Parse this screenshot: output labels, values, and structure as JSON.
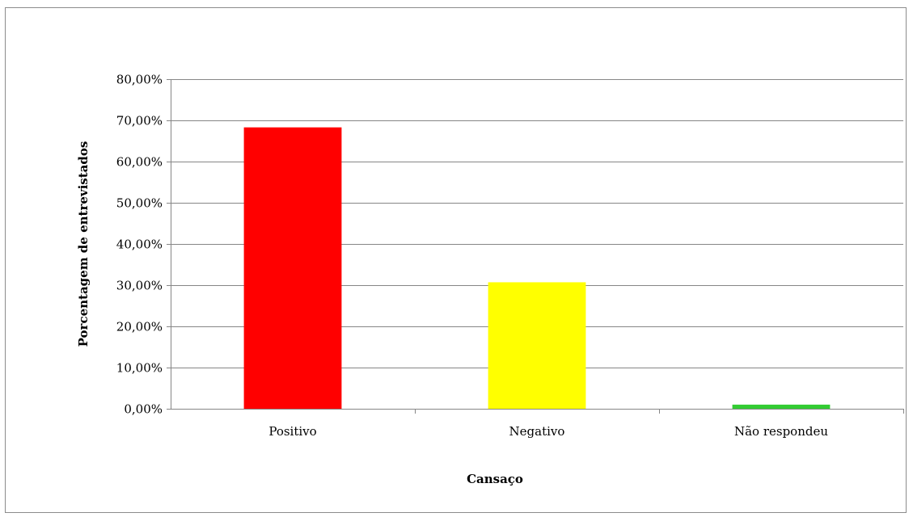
{
  "chart_data": {
    "type": "bar",
    "title": "",
    "xlabel": "Cansaço",
    "ylabel": "Porcentagem de entrevistados",
    "categories": [
      "Positivo",
      "Negativo",
      "Não respondeu"
    ],
    "values": [
      68.3,
      30.7,
      1.0
    ],
    "bar_colors": [
      "#ff0000",
      "#ffff00",
      "#33cc33"
    ],
    "ylim": [
      0,
      80
    ],
    "yticks": [
      0,
      10,
      20,
      30,
      40,
      50,
      60,
      70,
      80
    ],
    "ytick_labels": [
      "0,00%",
      "10,00%",
      "20,00%",
      "30,00%",
      "40,00%",
      "50,00%",
      "60,00%",
      "70,00%",
      "80,00%"
    ],
    "grid": true,
    "legend": "none"
  }
}
